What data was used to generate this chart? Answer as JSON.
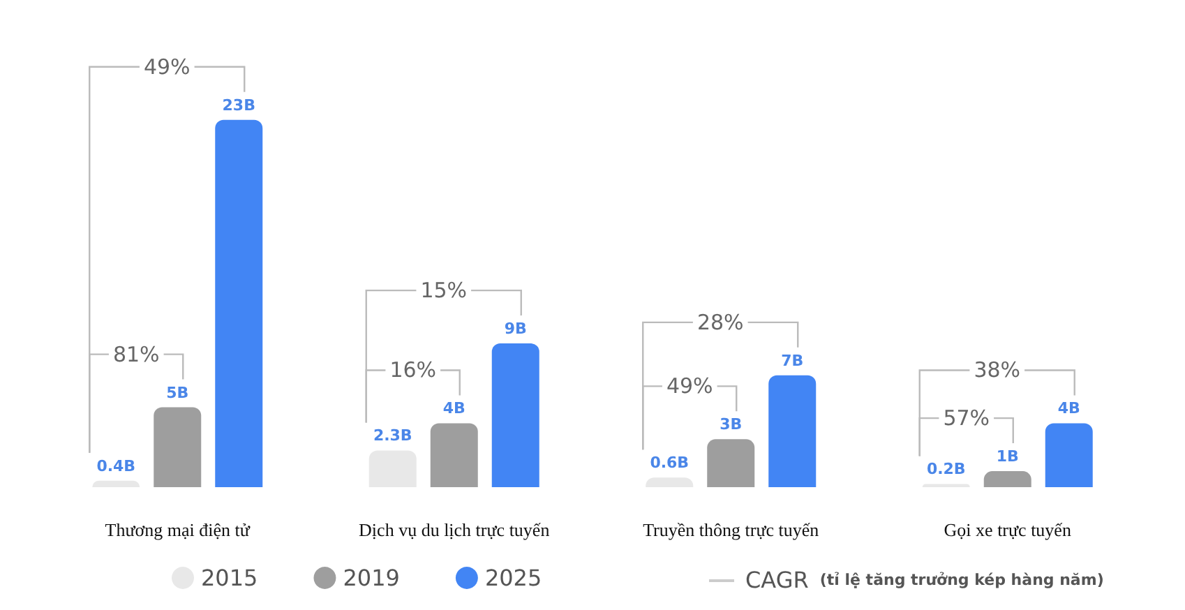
{
  "chart_data": {
    "type": "bar",
    "categories": [
      "Thương mại điện tử",
      "Dịch vụ du lịch trực tuyến",
      "Truyền thông trực tuyến",
      "Gọi xe trực tuyến"
    ],
    "series": [
      {
        "name": "2015",
        "color": "#e8e8e8",
        "values": [
          0.4,
          2.3,
          0.6,
          0.2
        ],
        "value_labels": [
          "0.4B",
          "2.3B",
          "0.6B",
          "0.2B"
        ]
      },
      {
        "name": "2019",
        "color": "#9e9e9e",
        "values": [
          5,
          4,
          3,
          1
        ],
        "value_labels": [
          "5B",
          "4B",
          "3B",
          "1B"
        ]
      },
      {
        "name": "2025",
        "color": "#4285f4",
        "values": [
          23,
          9,
          7,
          4
        ],
        "value_labels": [
          "23B",
          "9B",
          "7B",
          "4B"
        ]
      }
    ],
    "annotations": [
      "49%",
      "81%",
      "15%",
      "16%",
      "28%",
      "49%",
      "38%",
      "57%",
      "CAGR",
      "(tỉ lệ tăng trưởng kép hàng năm)"
    ],
    "legend": "bottom",
    "grid": false
  }
}
